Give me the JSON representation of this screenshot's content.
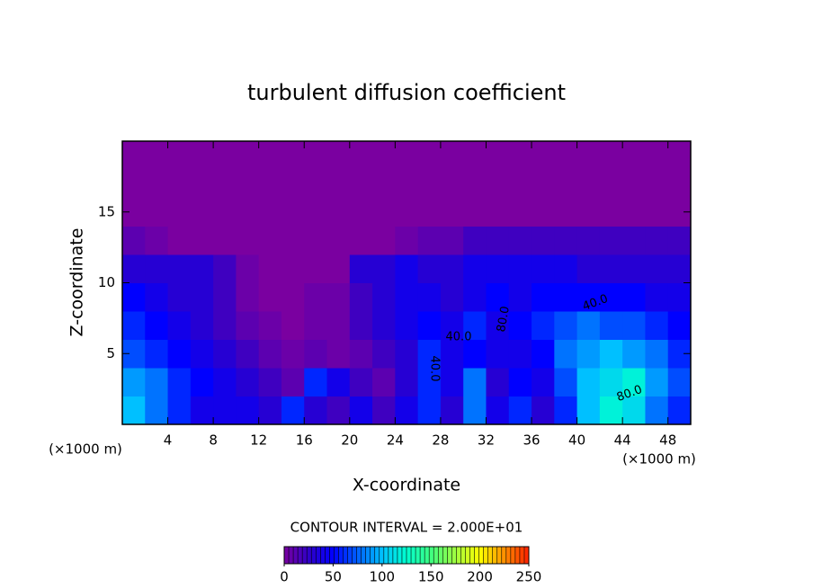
{
  "chart_data": {
    "type": "contour",
    "title": "turbulent diffusion coefficient",
    "x_label": "X-coordinate",
    "y_label": "Z-coordinate",
    "x_unit": "(×1000 m)",
    "y_unit": "(×1000 m)",
    "contour_interval": "CONTOUR INTERVAL = 2.000E+01",
    "annotations": [
      "40.0",
      "40.0",
      "80.0",
      "80.0",
      "40.0"
    ],
    "xlim": [
      0,
      50
    ],
    "ylim": [
      0,
      20
    ],
    "xticks": [
      4,
      8,
      12,
      16,
      20,
      24,
      28,
      32,
      36,
      40,
      44,
      48
    ],
    "yticks": [
      5,
      10,
      15
    ],
    "x": [
      1,
      3,
      5,
      7,
      9,
      11,
      13,
      15,
      17,
      19,
      21,
      23,
      25,
      27,
      29,
      31,
      33,
      35,
      37,
      39,
      41,
      43,
      45,
      47,
      49
    ],
    "y": [
      1,
      3,
      5,
      7,
      9,
      11,
      13,
      15,
      17,
      19
    ],
    "z": [
      [
        100,
        80,
        60,
        40,
        40,
        40,
        30,
        60,
        30,
        20,
        40,
        20,
        40,
        60,
        30,
        80,
        40,
        60,
        30,
        60,
        100,
        120,
        110,
        80,
        60
      ],
      [
        90,
        80,
        60,
        50,
        40,
        30,
        20,
        10,
        60,
        40,
        20,
        10,
        30,
        60,
        40,
        80,
        30,
        50,
        40,
        70,
        100,
        110,
        120,
        90,
        70
      ],
      [
        70,
        60,
        50,
        40,
        30,
        20,
        10,
        5,
        10,
        5,
        10,
        20,
        30,
        60,
        40,
        50,
        40,
        40,
        50,
        80,
        90,
        100,
        90,
        80,
        60
      ],
      [
        60,
        50,
        40,
        30,
        20,
        10,
        5,
        0,
        5,
        5,
        20,
        30,
        40,
        50,
        40,
        60,
        40,
        50,
        60,
        70,
        80,
        70,
        70,
        60,
        50
      ],
      [
        50,
        40,
        30,
        30,
        20,
        5,
        0,
        0,
        5,
        5,
        20,
        30,
        40,
        40,
        30,
        40,
        50,
        40,
        50,
        50,
        50,
        50,
        50,
        40,
        40
      ],
      [
        30,
        30,
        30,
        30,
        20,
        5,
        0,
        0,
        0,
        0,
        30,
        30,
        40,
        30,
        30,
        40,
        40,
        40,
        40,
        40,
        30,
        30,
        30,
        30,
        30
      ],
      [
        10,
        5,
        0,
        0,
        0,
        0,
        0,
        0,
        0,
        0,
        0,
        0,
        5,
        10,
        10,
        20,
        20,
        20,
        20,
        20,
        20,
        20,
        20,
        20,
        20
      ],
      [
        0,
        0,
        0,
        0,
        0,
        0,
        0,
        0,
        0,
        0,
        0,
        0,
        0,
        0,
        0,
        0,
        0,
        0,
        0,
        0,
        0,
        0,
        0,
        0,
        0
      ],
      [
        0,
        0,
        0,
        0,
        0,
        0,
        0,
        0,
        0,
        0,
        0,
        0,
        0,
        0,
        0,
        0,
        0,
        0,
        0,
        0,
        0,
        0,
        0,
        0,
        0
      ],
      [
        0,
        0,
        0,
        0,
        0,
        0,
        0,
        0,
        0,
        0,
        0,
        0,
        0,
        0,
        0,
        0,
        0,
        0,
        0,
        0,
        0,
        0,
        0,
        0,
        0
      ]
    ],
    "clim": [
      0,
      250
    ],
    "cticks": [
      0,
      50,
      100,
      150,
      200,
      250
    ],
    "colors": [
      "#7a00a0",
      "#3000c8",
      "#0000ff",
      "#0060ff",
      "#00c0ff",
      "#00ffd0",
      "#40ff80",
      "#a0ff40",
      "#ffff00",
      "#ff9000",
      "#ff2000"
    ]
  }
}
